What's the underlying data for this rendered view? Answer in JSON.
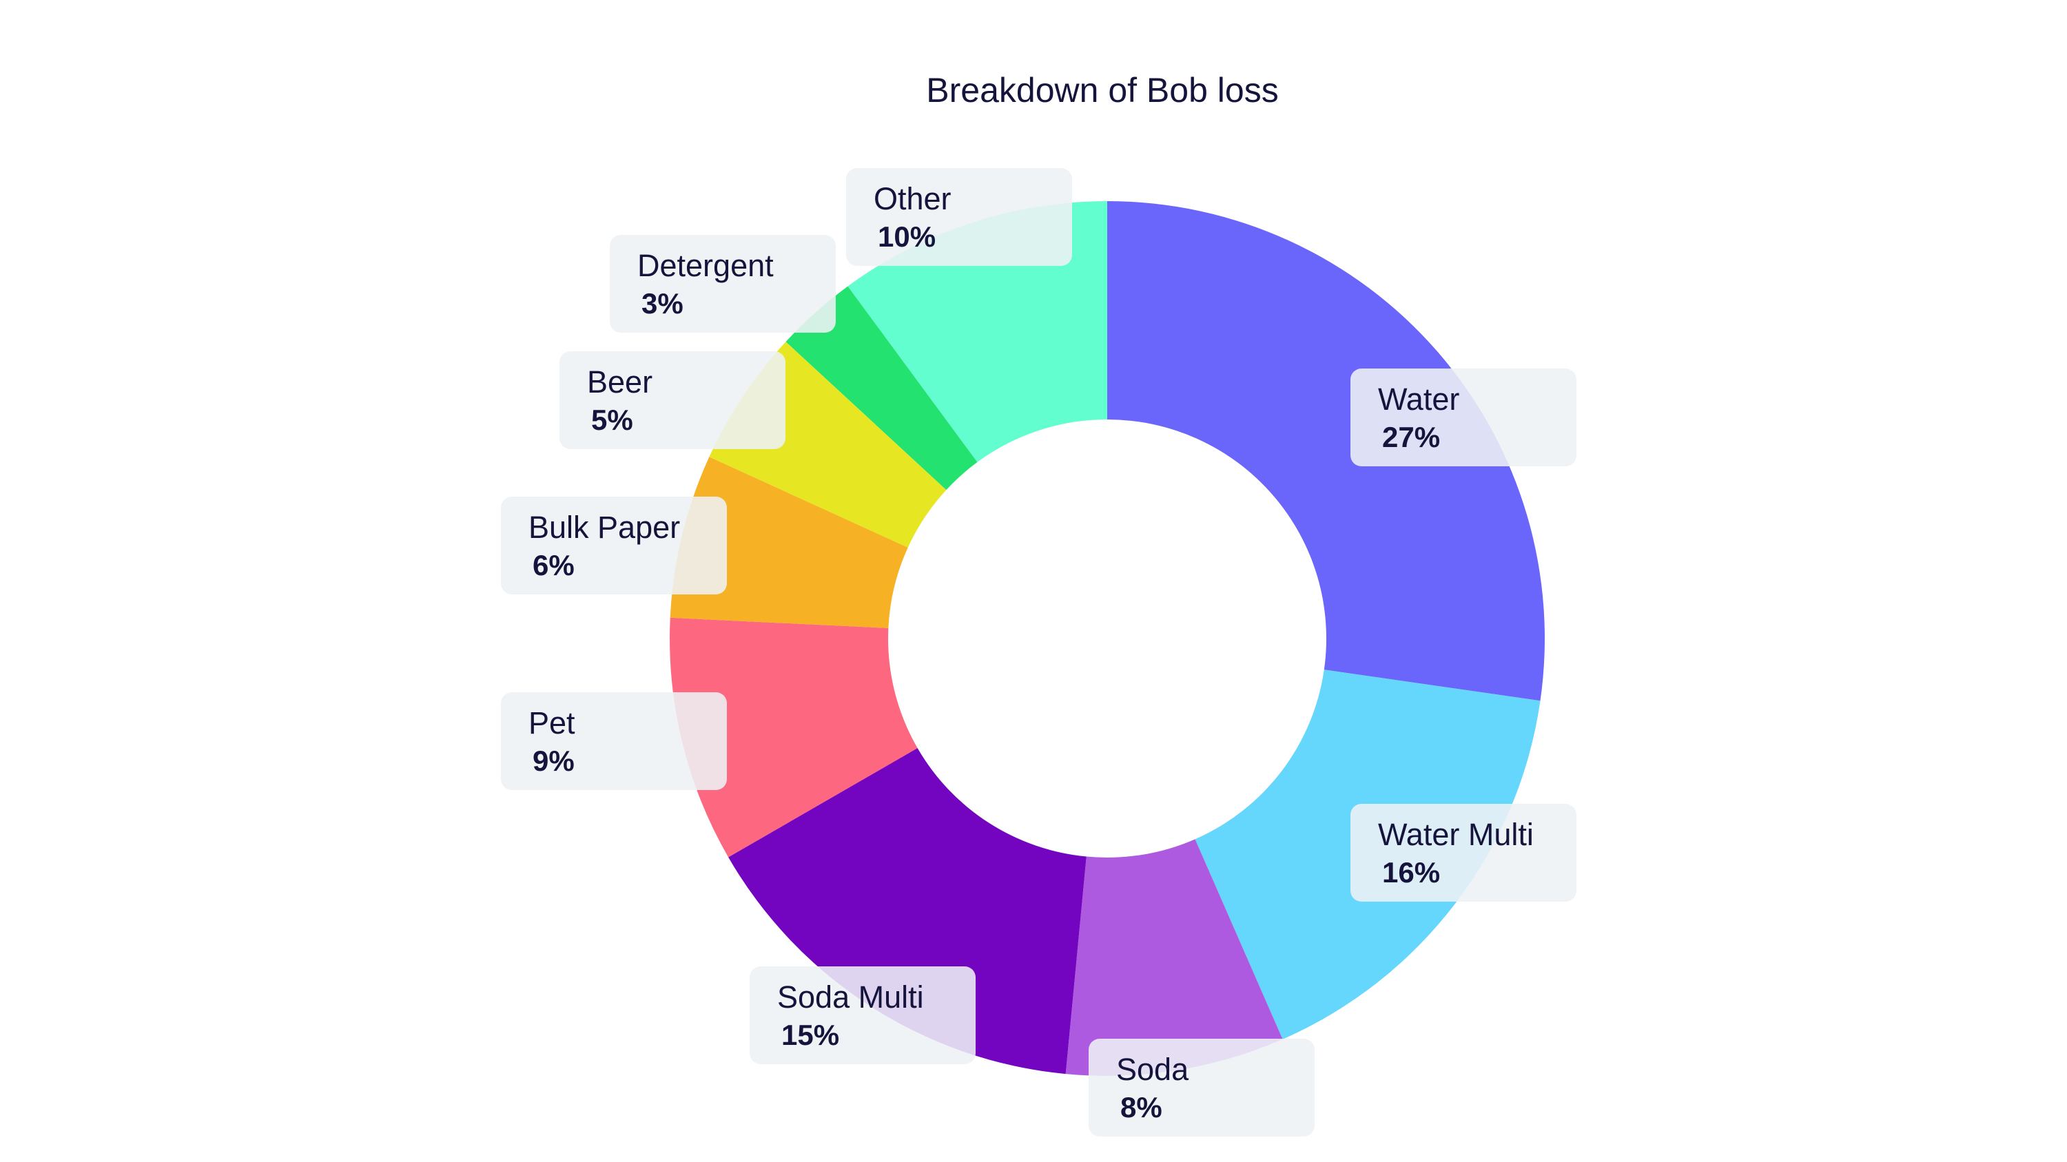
{
  "chart_data": {
    "type": "pie",
    "title": "Breakdown of Bob loss",
    "slices": [
      {
        "label": "Water",
        "value": 27,
        "display": "27%",
        "color": "#6b66fb"
      },
      {
        "label": "Water Multi",
        "value": 16,
        "display": "16%",
        "color": "#65d6fc"
      },
      {
        "label": "Soda",
        "value": 8,
        "display": "8%",
        "color": "#ad5ae0"
      },
      {
        "label": "Soda Multi",
        "value": 15,
        "display": "15%",
        "color": "#7304c0"
      },
      {
        "label": "Pet",
        "value": 9,
        "display": "9%",
        "color": "#fd6880"
      },
      {
        "label": "Bulk Paper",
        "value": 6,
        "display": "6%",
        "color": "#f7b125"
      },
      {
        "label": "Beer",
        "value": 5,
        "display": "5%",
        "color": "#e6e722"
      },
      {
        "label": "Detergent",
        "value": 3,
        "display": "3%",
        "color": "#24e270"
      },
      {
        "label": "Other",
        "value": 10,
        "display": "10%",
        "color": "#62fecf"
      }
    ],
    "donut": true,
    "legend": "none"
  }
}
